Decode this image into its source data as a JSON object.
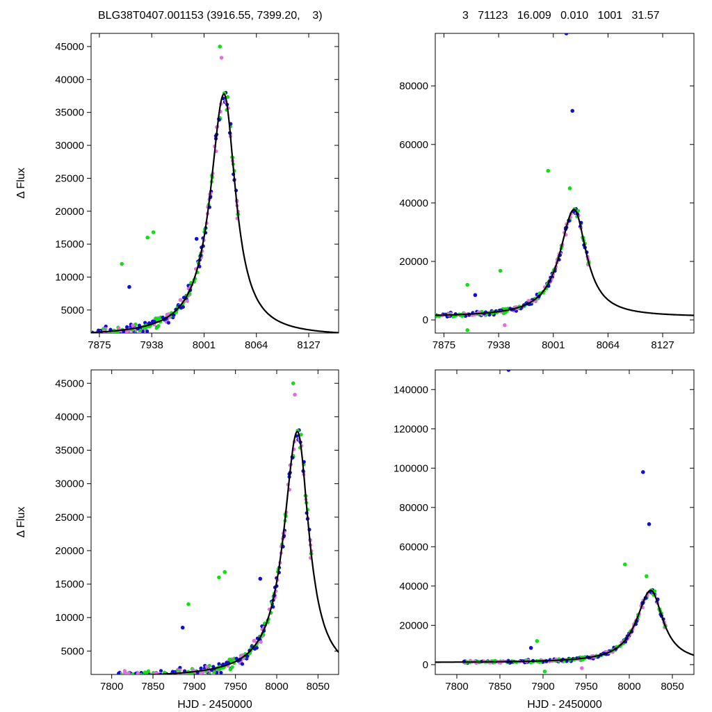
{
  "header": {
    "left": "BLG38T0407.001153 (3916.55, 7399.20,    3)",
    "right": "3   71123   16.009   0.010   1001   31.57"
  },
  "colors": {
    "survey_a": "#1010d0",
    "survey_b": "#e070e0",
    "survey_c": "#10e010",
    "model": "#000000"
  },
  "chart_data": [
    {
      "type": "scatter",
      "panel": "top-left (zoomed on event, flux range)",
      "xlabel": "",
      "ylabel": "Δ Flux",
      "xlim": [
        7865,
        8163
      ],
      "ylim": [
        1500,
        47000
      ],
      "xticks": [
        7875,
        7938,
        8001,
        8064,
        8127
      ],
      "yticks": [
        5000,
        10000,
        15000,
        20000,
        25000,
        30000,
        35000,
        40000,
        45000
      ],
      "model": {
        "name": "",
        "t0": 8025,
        "peak": 37800,
        "base": 1000,
        "rise_width": 20,
        "fall_width": 17,
        "color": "#000000"
      },
      "outliers": [
        {
          "x": 7911,
          "y": 8500,
          "series": "blue"
        },
        {
          "x": 7902,
          "y": 12000,
          "series": "green"
        },
        {
          "x": 7933,
          "y": 16000,
          "series": "green"
        },
        {
          "x": 7940,
          "y": 16800,
          "series": "green"
        },
        {
          "x": 7992,
          "y": 15800,
          "series": "blue"
        },
        {
          "x": 8020,
          "y": 45000,
          "series": "green"
        },
        {
          "x": 8022,
          "y": 43300,
          "series": "magenta"
        }
      ]
    },
    {
      "type": "scatter",
      "panel": "top-right (full flux range)",
      "xlabel": "",
      "ylabel": "",
      "xlim": [
        7865,
        8163
      ],
      "ylim": [
        -4500,
        98000
      ],
      "xticks": [
        7875,
        7938,
        8001,
        8064,
        8127
      ],
      "yticks": [
        0,
        20000,
        40000,
        60000,
        80000
      ],
      "model": {
        "name": "",
        "t0": 8025,
        "peak": 37800,
        "base": 1000,
        "rise_width": 20,
        "fall_width": 17,
        "color": "#000000"
      },
      "outliers": [
        {
          "x": 8016,
          "y": 98000,
          "series": "blue"
        },
        {
          "x": 8023,
          "y": 71500,
          "series": "blue"
        },
        {
          "x": 7995,
          "y": 51000,
          "series": "green"
        },
        {
          "x": 8020,
          "y": 45000,
          "series": "green"
        },
        {
          "x": 7911,
          "y": 8500,
          "series": "blue"
        },
        {
          "x": 7902,
          "y": 12000,
          "series": "green"
        },
        {
          "x": 7940,
          "y": 16800,
          "series": "green"
        },
        {
          "x": 7902,
          "y": -3500,
          "series": "green"
        },
        {
          "x": 7945,
          "y": -1800,
          "series": "magenta"
        }
      ]
    },
    {
      "type": "scatter",
      "panel": "bottom-left (full season, flux range)",
      "xlabel": "HJD - 2450000",
      "ylabel": "Δ Flux",
      "xlim": [
        7775,
        8075
      ],
      "ylim": [
        1500,
        47000
      ],
      "xticks": [
        7800,
        7850,
        7900,
        7950,
        8000,
        8050
      ],
      "yticks": [
        5000,
        10000,
        15000,
        20000,
        25000,
        30000,
        35000,
        40000,
        45000
      ],
      "model": {
        "name": "",
        "t0": 8025,
        "peak": 37800,
        "base": 1000,
        "rise_width": 20,
        "fall_width": 17,
        "color": "#000000"
      },
      "outliers": [
        {
          "x": 7886,
          "y": 8500,
          "series": "blue"
        },
        {
          "x": 7893,
          "y": 12000,
          "series": "green"
        },
        {
          "x": 7930,
          "y": 16000,
          "series": "green"
        },
        {
          "x": 7937,
          "y": 16800,
          "series": "green"
        },
        {
          "x": 7980,
          "y": 15800,
          "series": "blue"
        },
        {
          "x": 8020,
          "y": 45000,
          "series": "green"
        },
        {
          "x": 8022,
          "y": 43300,
          "series": "magenta"
        }
      ]
    },
    {
      "type": "scatter",
      "panel": "bottom-right (full season, full flux range)",
      "xlabel": "HJD - 2450000",
      "ylabel": "",
      "xlim": [
        7775,
        8075
      ],
      "ylim": [
        -5000,
        150000
      ],
      "xticks": [
        7800,
        7850,
        7900,
        7950,
        8000,
        8050
      ],
      "yticks": [
        0,
        20000,
        40000,
        60000,
        80000,
        100000,
        120000,
        140000
      ],
      "model": {
        "name": "",
        "t0": 8025,
        "peak": 37800,
        "base": 1000,
        "rise_width": 20,
        "fall_width": 17,
        "color": "#000000"
      },
      "outliers": [
        {
          "x": 7860,
          "y": 150000,
          "series": "blue"
        },
        {
          "x": 8016,
          "y": 98000,
          "series": "blue"
        },
        {
          "x": 8023,
          "y": 71500,
          "series": "blue"
        },
        {
          "x": 7995,
          "y": 51000,
          "series": "green"
        },
        {
          "x": 8020,
          "y": 45000,
          "series": "green"
        },
        {
          "x": 7886,
          "y": 8500,
          "series": "blue"
        },
        {
          "x": 7893,
          "y": 12000,
          "series": "green"
        },
        {
          "x": 7902,
          "y": -3500,
          "series": "green"
        },
        {
          "x": 7945,
          "y": -1800,
          "series": "magenta"
        }
      ]
    }
  ]
}
